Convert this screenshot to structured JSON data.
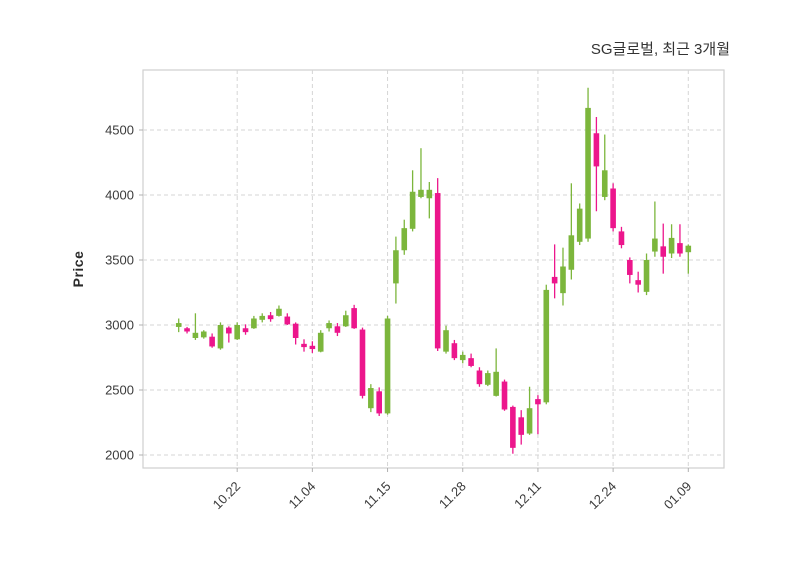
{
  "figure": {
    "title": "SG글로벌, 최근 3개월",
    "ylabel": "Price"
  },
  "chart_data": {
    "type": "candlestick",
    "title": "SG글로벌, 최근 3개월",
    "xlabel": "",
    "ylabel": "Price",
    "grid": true,
    "grid_style": "dashed",
    "ylim": [
      1900,
      4960
    ],
    "y_ticks": [
      2000,
      2500,
      3000,
      3500,
      4000,
      4500
    ],
    "x_tick_labels": [
      "10.22",
      "11.04",
      "11.15",
      "11.28",
      "12.11",
      "12.24",
      "01.09"
    ],
    "x_tick_indices": [
      7,
      16,
      25,
      34,
      43,
      52,
      61
    ],
    "candle_format": "[open, high, low, close]",
    "candles": [
      [
        2985,
        3050,
        2945,
        3015
      ],
      [
        2975,
        2985,
        2935,
        2950
      ],
      [
        2900,
        3090,
        2885,
        2940
      ],
      [
        2905,
        2960,
        2895,
        2950
      ],
      [
        2910,
        2935,
        2825,
        2835
      ],
      [
        2820,
        3020,
        2810,
        3000
      ],
      [
        2980,
        2990,
        2865,
        2935
      ],
      [
        2890,
        3020,
        2885,
        3000
      ],
      [
        2975,
        3005,
        2925,
        2945
      ],
      [
        2975,
        3070,
        2970,
        3050
      ],
      [
        3040,
        3090,
        3020,
        3070
      ],
      [
        3075,
        3100,
        3025,
        3045
      ],
      [
        3070,
        3150,
        3065,
        3125
      ],
      [
        3065,
        3090,
        3000,
        3005
      ],
      [
        3010,
        3020,
        2850,
        2900
      ],
      [
        2855,
        2890,
        2795,
        2830
      ],
      [
        2840,
        2875,
        2785,
        2815
      ],
      [
        2795,
        2960,
        2790,
        2940
      ],
      [
        2975,
        3035,
        2950,
        3015
      ],
      [
        2990,
        3015,
        2915,
        2940
      ],
      [
        2990,
        3110,
        2985,
        3075
      ],
      [
        3130,
        3155,
        2970,
        2975
      ],
      [
        2965,
        2980,
        2435,
        2455
      ],
      [
        2360,
        2545,
        2330,
        2515
      ],
      [
        2490,
        2520,
        2300,
        2320
      ],
      [
        2320,
        3070,
        2310,
        3050
      ],
      [
        3320,
        3680,
        3165,
        3575
      ],
      [
        3575,
        3810,
        3540,
        3745
      ],
      [
        3740,
        4190,
        3720,
        4025
      ],
      [
        3985,
        4360,
        3975,
        4040
      ],
      [
        3975,
        4100,
        3820,
        4040
      ],
      [
        4015,
        4130,
        2800,
        2820
      ],
      [
        2795,
        2995,
        2780,
        2960
      ],
      [
        2860,
        2885,
        2730,
        2745
      ],
      [
        2730,
        2795,
        2705,
        2770
      ],
      [
        2745,
        2780,
        2675,
        2685
      ],
      [
        2650,
        2675,
        2525,
        2545
      ],
      [
        2540,
        2650,
        2530,
        2630
      ],
      [
        2455,
        2820,
        2450,
        2640
      ],
      [
        2565,
        2580,
        2340,
        2350
      ],
      [
        2370,
        2380,
        2010,
        2055
      ],
      [
        2290,
        2345,
        2080,
        2155
      ],
      [
        2165,
        2525,
        2155,
        2360
      ],
      [
        2430,
        2460,
        2160,
        2390
      ],
      [
        2405,
        3310,
        2390,
        3270
      ],
      [
        3370,
        3620,
        3205,
        3320
      ],
      [
        3245,
        3595,
        3150,
        3450
      ],
      [
        3425,
        4090,
        3350,
        3690
      ],
      [
        3640,
        3935,
        3615,
        3895
      ],
      [
        3665,
        4825,
        3640,
        4670
      ],
      [
        4475,
        4600,
        3875,
        4220
      ],
      [
        3985,
        4465,
        3960,
        4190
      ],
      [
        4050,
        4090,
        3720,
        3745
      ],
      [
        3720,
        3755,
        3590,
        3615
      ],
      [
        3500,
        3520,
        3320,
        3385
      ],
      [
        3345,
        3410,
        3250,
        3310
      ],
      [
        3255,
        3550,
        3230,
        3500
      ],
      [
        3565,
        3950,
        3525,
        3665
      ],
      [
        3605,
        3780,
        3395,
        3525
      ],
      [
        3550,
        3775,
        3515,
        3670
      ],
      [
        3630,
        3775,
        3525,
        3550
      ],
      [
        3560,
        3620,
        3395,
        3610
      ]
    ],
    "colors": {
      "up": "#7cb63c",
      "down": "#ec168c",
      "grid": "#d5d5d5",
      "plot_border": "#cfcfcf",
      "tick_mark": "#b0b0b0",
      "tick_text": "#3a3a3a",
      "background": "#ffffff"
    },
    "legend_position": "none"
  }
}
